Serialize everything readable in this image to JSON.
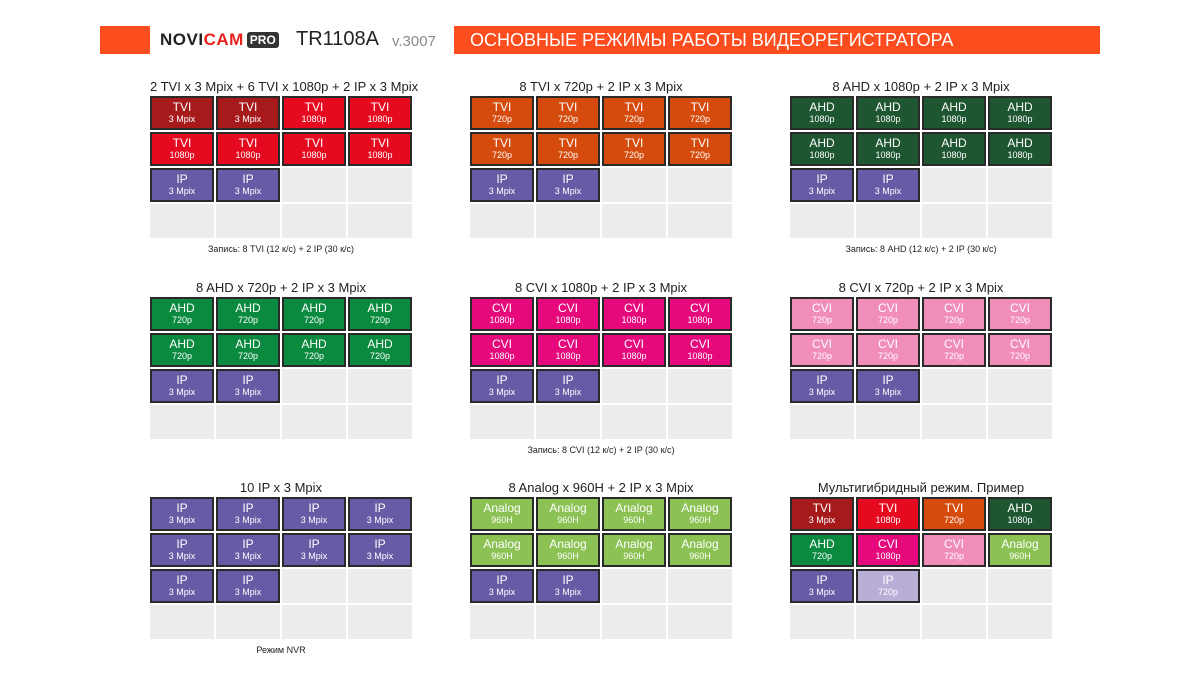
{
  "header": {
    "logo_brand": "NOVI",
    "logo_cam": "CAM",
    "logo_pro": "PRO",
    "model": "TR1108A",
    "version": "v.3007",
    "title": "ОСНОВНЫЕ РЕЖИМЫ РАБОТЫ ВИДЕОРЕГИСТРАТОРА"
  },
  "colors": {
    "header_bar": "#fd4c1e",
    "tvi_3mp": "#a61a1c",
    "tvi_1080": "#e50a1f",
    "tvi_720": "#d54b0d",
    "ahd_1080": "#1e5632",
    "ahd_720": "#0a8a3e",
    "cvi_1080": "#e5097c",
    "cvi_720": "#f08db9",
    "ip_3mp": "#675ba6",
    "ip_720": "#b9aed6",
    "analog": "#8cc154"
  },
  "panels": [
    {
      "title": "2 TVI x 3 Mpix + 6 TVI x 1080p + 2 IP x 3 Mpix",
      "note": "Запись: 8 TVI (12 к/с) + 2 IP (30 к/с)",
      "cells": [
        {
          "t": "TVI",
          "s": "3 Mpix",
          "c": "tvi_3mp"
        },
        {
          "t": "TVI",
          "s": "3 Mpix",
          "c": "tvi_3mp"
        },
        {
          "t": "TVI",
          "s": "1080p",
          "c": "tvi_1080"
        },
        {
          "t": "TVI",
          "s": "1080p",
          "c": "tvi_1080"
        },
        {
          "t": "TVI",
          "s": "1080p",
          "c": "tvi_1080"
        },
        {
          "t": "TVI",
          "s": "1080p",
          "c": "tvi_1080"
        },
        {
          "t": "TVI",
          "s": "1080p",
          "c": "tvi_1080"
        },
        {
          "t": "TVI",
          "s": "1080p",
          "c": "tvi_1080"
        },
        {
          "t": "IP",
          "s": "3 Mpix",
          "c": "ip_3mp"
        },
        {
          "t": "IP",
          "s": "3 Mpix",
          "c": "ip_3mp"
        },
        {},
        {},
        {},
        {},
        {},
        {}
      ]
    },
    {
      "title": "8 TVI x 720p + 2 IP x 3 Mpix",
      "note": "",
      "cells": [
        {
          "t": "TVI",
          "s": "720p",
          "c": "tvi_720"
        },
        {
          "t": "TVI",
          "s": "720p",
          "c": "tvi_720"
        },
        {
          "t": "TVI",
          "s": "720p",
          "c": "tvi_720"
        },
        {
          "t": "TVI",
          "s": "720p",
          "c": "tvi_720"
        },
        {
          "t": "TVI",
          "s": "720p",
          "c": "tvi_720"
        },
        {
          "t": "TVI",
          "s": "720p",
          "c": "tvi_720"
        },
        {
          "t": "TVI",
          "s": "720p",
          "c": "tvi_720"
        },
        {
          "t": "TVI",
          "s": "720p",
          "c": "tvi_720"
        },
        {
          "t": "IP",
          "s": "3 Mpix",
          "c": "ip_3mp"
        },
        {
          "t": "IP",
          "s": "3 Mpix",
          "c": "ip_3mp"
        },
        {},
        {},
        {},
        {},
        {},
        {}
      ]
    },
    {
      "title": "8 AHD x 1080p + 2 IP x 3 Mpix",
      "note": "Запись: 8 AHD (12 к/с) + 2 IP (30 к/с)",
      "cells": [
        {
          "t": "AHD",
          "s": "1080p",
          "c": "ahd_1080"
        },
        {
          "t": "AHD",
          "s": "1080p",
          "c": "ahd_1080"
        },
        {
          "t": "AHD",
          "s": "1080p",
          "c": "ahd_1080"
        },
        {
          "t": "AHD",
          "s": "1080p",
          "c": "ahd_1080"
        },
        {
          "t": "AHD",
          "s": "1080p",
          "c": "ahd_1080"
        },
        {
          "t": "AHD",
          "s": "1080p",
          "c": "ahd_1080"
        },
        {
          "t": "AHD",
          "s": "1080p",
          "c": "ahd_1080"
        },
        {
          "t": "AHD",
          "s": "1080p",
          "c": "ahd_1080"
        },
        {
          "t": "IP",
          "s": "3 Mpix",
          "c": "ip_3mp"
        },
        {
          "t": "IP",
          "s": "3 Mpix",
          "c": "ip_3mp"
        },
        {},
        {},
        {},
        {},
        {},
        {}
      ]
    },
    {
      "title": "8 AHD x 720p + 2 IP x 3 Mpix",
      "note": "",
      "cells": [
        {
          "t": "AHD",
          "s": "720p",
          "c": "ahd_720"
        },
        {
          "t": "AHD",
          "s": "720p",
          "c": "ahd_720"
        },
        {
          "t": "AHD",
          "s": "720p",
          "c": "ahd_720"
        },
        {
          "t": "AHD",
          "s": "720p",
          "c": "ahd_720"
        },
        {
          "t": "AHD",
          "s": "720p",
          "c": "ahd_720"
        },
        {
          "t": "AHD",
          "s": "720p",
          "c": "ahd_720"
        },
        {
          "t": "AHD",
          "s": "720p",
          "c": "ahd_720"
        },
        {
          "t": "AHD",
          "s": "720p",
          "c": "ahd_720"
        },
        {
          "t": "IP",
          "s": "3 Mpix",
          "c": "ip_3mp"
        },
        {
          "t": "IP",
          "s": "3 Mpix",
          "c": "ip_3mp"
        },
        {},
        {},
        {},
        {},
        {},
        {}
      ]
    },
    {
      "title": "8 CVI x 1080p + 2 IP x 3 Mpix",
      "note": "Запись: 8 CVI (12 к/с) + 2 IP (30 к/с)",
      "cells": [
        {
          "t": "CVI",
          "s": "1080p",
          "c": "cvi_1080"
        },
        {
          "t": "CVI",
          "s": "1080p",
          "c": "cvi_1080"
        },
        {
          "t": "CVI",
          "s": "1080p",
          "c": "cvi_1080"
        },
        {
          "t": "CVI",
          "s": "1080p",
          "c": "cvi_1080"
        },
        {
          "t": "CVI",
          "s": "1080p",
          "c": "cvi_1080"
        },
        {
          "t": "CVI",
          "s": "1080p",
          "c": "cvi_1080"
        },
        {
          "t": "CVI",
          "s": "1080p",
          "c": "cvi_1080"
        },
        {
          "t": "CVI",
          "s": "1080p",
          "c": "cvi_1080"
        },
        {
          "t": "IP",
          "s": "3 Mpix",
          "c": "ip_3mp"
        },
        {
          "t": "IP",
          "s": "3 Mpix",
          "c": "ip_3mp"
        },
        {},
        {},
        {},
        {},
        {},
        {}
      ]
    },
    {
      "title": "8 CVI x 720p + 2 IP x 3 Mpix",
      "note": "",
      "cells": [
        {
          "t": "CVI",
          "s": "720p",
          "c": "cvi_720"
        },
        {
          "t": "CVI",
          "s": "720p",
          "c": "cvi_720"
        },
        {
          "t": "CVI",
          "s": "720p",
          "c": "cvi_720"
        },
        {
          "t": "CVI",
          "s": "720p",
          "c": "cvi_720"
        },
        {
          "t": "CVI",
          "s": "720p",
          "c": "cvi_720"
        },
        {
          "t": "CVI",
          "s": "720p",
          "c": "cvi_720"
        },
        {
          "t": "CVI",
          "s": "720p",
          "c": "cvi_720"
        },
        {
          "t": "CVI",
          "s": "720p",
          "c": "cvi_720"
        },
        {
          "t": "IP",
          "s": "3 Mpix",
          "c": "ip_3mp"
        },
        {
          "t": "IP",
          "s": "3 Mpix",
          "c": "ip_3mp"
        },
        {},
        {},
        {},
        {},
        {},
        {}
      ]
    },
    {
      "title": "10 IP x 3 Mpix",
      "note": "Режим NVR",
      "cells": [
        {
          "t": "IP",
          "s": "3 Mpix",
          "c": "ip_3mp"
        },
        {
          "t": "IP",
          "s": "3 Mpix",
          "c": "ip_3mp"
        },
        {
          "t": "IP",
          "s": "3 Mpix",
          "c": "ip_3mp"
        },
        {
          "t": "IP",
          "s": "3 Mpix",
          "c": "ip_3mp"
        },
        {
          "t": "IP",
          "s": "3 Mpix",
          "c": "ip_3mp"
        },
        {
          "t": "IP",
          "s": "3 Mpix",
          "c": "ip_3mp"
        },
        {
          "t": "IP",
          "s": "3 Mpix",
          "c": "ip_3mp"
        },
        {
          "t": "IP",
          "s": "3 Mpix",
          "c": "ip_3mp"
        },
        {
          "t": "IP",
          "s": "3 Mpix",
          "c": "ip_3mp"
        },
        {
          "t": "IP",
          "s": "3 Mpix",
          "c": "ip_3mp"
        },
        {},
        {},
        {},
        {},
        {},
        {}
      ]
    },
    {
      "title": "8 Analog x 960H + 2 IP x 3 Mpix",
      "note": "",
      "cells": [
        {
          "t": "Analog",
          "s": "960H",
          "c": "analog"
        },
        {
          "t": "Analog",
          "s": "960H",
          "c": "analog"
        },
        {
          "t": "Analog",
          "s": "960H",
          "c": "analog"
        },
        {
          "t": "Analog",
          "s": "960H",
          "c": "analog"
        },
        {
          "t": "Analog",
          "s": "960H",
          "c": "analog"
        },
        {
          "t": "Analog",
          "s": "960H",
          "c": "analog"
        },
        {
          "t": "Analog",
          "s": "960H",
          "c": "analog"
        },
        {
          "t": "Analog",
          "s": "960H",
          "c": "analog"
        },
        {
          "t": "IP",
          "s": "3 Mpix",
          "c": "ip_3mp"
        },
        {
          "t": "IP",
          "s": "3 Mpix",
          "c": "ip_3mp"
        },
        {},
        {},
        {},
        {},
        {},
        {}
      ]
    },
    {
      "title": "Мультигибридный режим. Пример",
      "note": "",
      "cells": [
        {
          "t": "TVI",
          "s": "3 Mpix",
          "c": "tvi_3mp"
        },
        {
          "t": "TVI",
          "s": "1080p",
          "c": "tvi_1080"
        },
        {
          "t": "TVI",
          "s": "720p",
          "c": "tvi_720"
        },
        {
          "t": "AHD",
          "s": "1080p",
          "c": "ahd_1080"
        },
        {
          "t": "AHD",
          "s": "720p",
          "c": "ahd_720"
        },
        {
          "t": "CVI",
          "s": "1080p",
          "c": "cvi_1080"
        },
        {
          "t": "CVI",
          "s": "720p",
          "c": "cvi_720"
        },
        {
          "t": "Analog",
          "s": "960H",
          "c": "analog"
        },
        {
          "t": "IP",
          "s": "3 Mpix",
          "c": "ip_3mp"
        },
        {
          "t": "IP",
          "s": "720p",
          "c": "ip_720"
        },
        {},
        {},
        {},
        {},
        {},
        {}
      ]
    }
  ]
}
